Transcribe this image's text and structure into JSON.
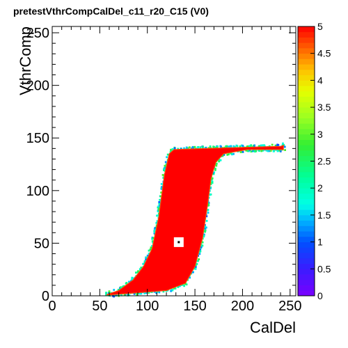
{
  "chart_data": {
    "type": "heatmap",
    "title": "pretestVthrCompCalDel_c11_r20_C15 (V0)",
    "xlabel": "CalDel",
    "ylabel": "VthrComp",
    "xlim": [
      0,
      256
    ],
    "ylim": [
      0,
      256
    ],
    "x_ticks": [
      0,
      50,
      100,
      150,
      200,
      250
    ],
    "y_ticks": [
      0,
      50,
      100,
      150,
      200,
      250
    ],
    "z_range": [
      0,
      5
    ],
    "colorbar_ticks": [
      "0",
      "0.5",
      "1",
      "1.5",
      "2",
      "2.5",
      "3",
      "3.5",
      "4",
      "4.5",
      "5"
    ],
    "palette": "rainbow",
    "dominant_value": 5,
    "edge_value_range": [
      1,
      3
    ],
    "region": {
      "lower_boundary": [
        [
          57,
          1
        ],
        [
          70,
          5
        ],
        [
          85,
          15
        ],
        [
          96,
          28
        ],
        [
          105,
          45
        ],
        [
          112,
          75
        ],
        [
          118,
          115
        ],
        [
          123,
          135
        ],
        [
          128,
          139
        ],
        [
          160,
          140
        ],
        [
          200,
          141
        ],
        [
          240,
          142
        ],
        [
          243,
          143
        ]
      ],
      "upper_boundary": [
        [
          62,
          1
        ],
        [
          120,
          5
        ],
        [
          140,
          12
        ],
        [
          150,
          28
        ],
        [
          158,
          55
        ],
        [
          163,
          85
        ],
        [
          167,
          112
        ],
        [
          172,
          127
        ],
        [
          180,
          135
        ],
        [
          205,
          139
        ],
        [
          243,
          139
        ]
      ]
    },
    "marker_point": [
      133,
      51
    ],
    "grid": false,
    "legend": "colorbar-right"
  }
}
